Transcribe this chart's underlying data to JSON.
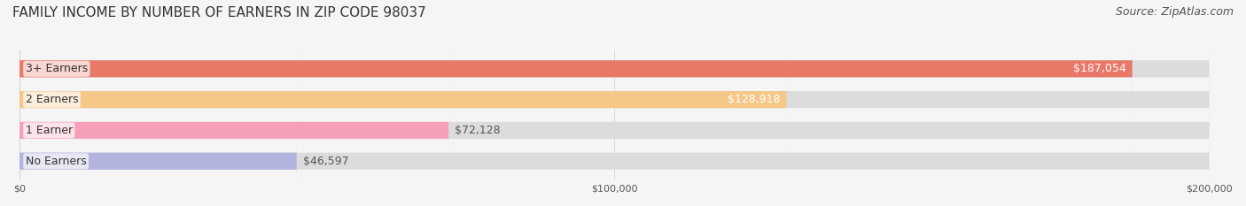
{
  "title": "FAMILY INCOME BY NUMBER OF EARNERS IN ZIP CODE 98037",
  "source": "Source: ZipAtlas.com",
  "categories": [
    "No Earners",
    "1 Earner",
    "2 Earners",
    "3+ Earners"
  ],
  "values": [
    46597,
    72128,
    128918,
    187054
  ],
  "labels": [
    "$46,597",
    "$72,128",
    "$128,918",
    "$187,054"
  ],
  "bar_colors": [
    "#b3b3e0",
    "#f5a0b8",
    "#f5c888",
    "#e87868"
  ],
  "bar_bg_color": "#e8e8e8",
  "background_color": "#f5f5f5",
  "xlim": [
    0,
    200000
  ],
  "xticks": [
    0,
    100000,
    200000
  ],
  "xticklabels": [
    "$0",
    "$100,000",
    "$200,000"
  ],
  "title_fontsize": 11,
  "source_fontsize": 9,
  "label_fontsize": 9,
  "bar_height": 0.55,
  "bar_label_dark": [
    false,
    false,
    true,
    true
  ]
}
